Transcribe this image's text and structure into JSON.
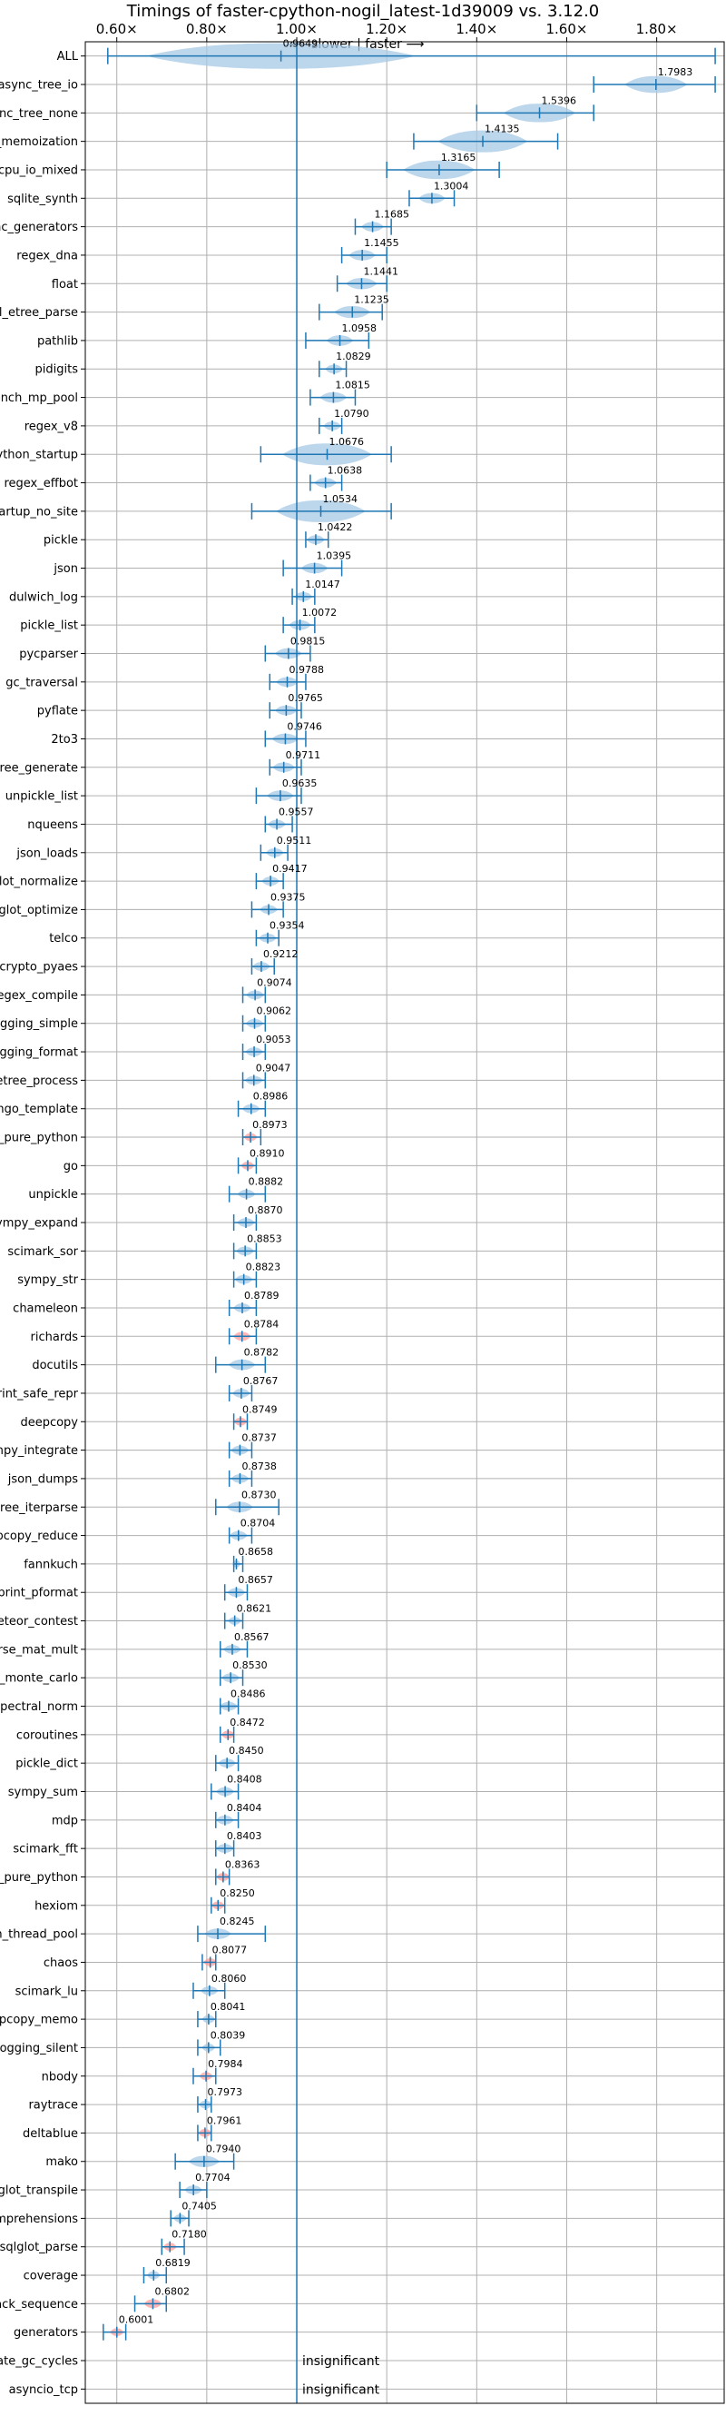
{
  "chart_data": {
    "type": "violin",
    "title": "Timings of faster-cpython-nogil_latest-1d39009 vs. 3.12.0",
    "direction_label": "⟵ slower | faster ⟶",
    "xlim": [
      0.53,
      1.95
    ],
    "x_ticks": [
      "0.60×",
      "0.80×",
      "1.00×",
      "1.20×",
      "1.40×",
      "1.60×",
      "1.80×"
    ],
    "x_tick_values": [
      0.6,
      0.8,
      1.0,
      1.2,
      1.4,
      1.6,
      1.8
    ],
    "reference_line": 1.0,
    "grid": true,
    "colors": {
      "faster": "#1f77b4",
      "slower": "#ff9896",
      "neutral": "#1f77b4"
    },
    "benchmarks": [
      {
        "name": "ALL",
        "value": 0.9649,
        "label": "0.9649",
        "min": 0.58,
        "max": 1.93,
        "spread": 0.3
      },
      {
        "name": "async_tree_io",
        "value": 1.7983,
        "label": "1.7983",
        "min": 1.66,
        "max": 1.93,
        "spread": 0.07
      },
      {
        "name": "async_tree_none",
        "value": 1.5396,
        "label": "1.5396",
        "min": 1.4,
        "max": 1.66,
        "spread": 0.08
      },
      {
        "name": "async_tree_memoization",
        "value": 1.4135,
        "label": "1.4135",
        "min": 1.26,
        "max": 1.58,
        "spread": 0.1
      },
      {
        "name": "async_tree_cpu_io_mixed",
        "value": 1.3165,
        "label": "1.3165",
        "min": 1.2,
        "max": 1.45,
        "spread": 0.08
      },
      {
        "name": "sqlite_synth",
        "value": 1.3004,
        "label": "1.3004",
        "min": 1.25,
        "max": 1.35,
        "spread": 0.03
      },
      {
        "name": "async_generators",
        "value": 1.1685,
        "label": "1.1685",
        "min": 1.13,
        "max": 1.21,
        "spread": 0.025
      },
      {
        "name": "regex_dna",
        "value": 1.1455,
        "label": "1.1455",
        "min": 1.1,
        "max": 1.2,
        "spread": 0.03
      },
      {
        "name": "float",
        "value": 1.1441,
        "label": "1.1441",
        "min": 1.09,
        "max": 1.2,
        "spread": 0.035
      },
      {
        "name": "xml_etree_parse",
        "value": 1.1235,
        "label": "1.1235",
        "min": 1.05,
        "max": 1.19,
        "spread": 0.04
      },
      {
        "name": "pathlib",
        "value": 1.0958,
        "label": "1.0958",
        "min": 1.02,
        "max": 1.16,
        "spread": 0.03
      },
      {
        "name": "pidigits",
        "value": 1.0829,
        "label": "1.0829",
        "min": 1.05,
        "max": 1.11,
        "spread": 0.02
      },
      {
        "name": "bench_mp_pool",
        "value": 1.0815,
        "label": "1.0815",
        "min": 1.03,
        "max": 1.13,
        "spread": 0.03
      },
      {
        "name": "regex_v8",
        "value": 1.079,
        "label": "1.0790",
        "min": 1.05,
        "max": 1.1,
        "spread": 0.02
      },
      {
        "name": "python_startup",
        "value": 1.0676,
        "label": "1.0676",
        "min": 0.92,
        "max": 1.21,
        "spread": 0.1
      },
      {
        "name": "regex_effbot",
        "value": 1.0638,
        "label": "1.0638",
        "min": 1.03,
        "max": 1.1,
        "spread": 0.025
      },
      {
        "name": "python_startup_no_site",
        "value": 1.0534,
        "label": "1.0534",
        "min": 0.9,
        "max": 1.21,
        "spread": 0.1
      },
      {
        "name": "pickle",
        "value": 1.0422,
        "label": "1.0422",
        "min": 1.02,
        "max": 1.07,
        "spread": 0.02
      },
      {
        "name": "json",
        "value": 1.0395,
        "label": "1.0395",
        "min": 0.97,
        "max": 1.1,
        "spread": 0.03
      },
      {
        "name": "dulwich_log",
        "value": 1.0147,
        "label": "1.0147",
        "min": 0.99,
        "max": 1.04,
        "spread": 0.02
      },
      {
        "name": "pickle_list",
        "value": 1.0072,
        "label": "1.0072",
        "min": 0.97,
        "max": 1.04,
        "spread": 0.025
      },
      {
        "name": "pycparser",
        "value": 0.9815,
        "label": "0.9815",
        "min": 0.93,
        "max": 1.03,
        "spread": 0.03
      },
      {
        "name": "gc_traversal",
        "value": 0.9788,
        "label": "0.9788",
        "min": 0.94,
        "max": 1.02,
        "spread": 0.025
      },
      {
        "name": "pyflate",
        "value": 0.9765,
        "label": "0.9765",
        "min": 0.94,
        "max": 1.01,
        "spread": 0.025
      },
      {
        "name": "2to3",
        "value": 0.9746,
        "label": "0.9746",
        "min": 0.93,
        "max": 1.02,
        "spread": 0.03
      },
      {
        "name": "xml_etree_generate",
        "value": 0.9711,
        "label": "0.9711",
        "min": 0.94,
        "max": 1.01,
        "spread": 0.025
      },
      {
        "name": "unpickle_list",
        "value": 0.9635,
        "label": "0.9635",
        "min": 0.91,
        "max": 1.01,
        "spread": 0.03
      },
      {
        "name": "nqueens",
        "value": 0.9557,
        "label": "0.9557",
        "min": 0.93,
        "max": 0.99,
        "spread": 0.02
      },
      {
        "name": "json_loads",
        "value": 0.9511,
        "label": "0.9511",
        "min": 0.92,
        "max": 0.98,
        "spread": 0.02
      },
      {
        "name": "sqlglot_normalize",
        "value": 0.9417,
        "label": "0.9417",
        "min": 0.91,
        "max": 0.97,
        "spread": 0.02
      },
      {
        "name": "sqlglot_optimize",
        "value": 0.9375,
        "label": "0.9375",
        "min": 0.9,
        "max": 0.97,
        "spread": 0.02
      },
      {
        "name": "telco",
        "value": 0.9354,
        "label": "0.9354",
        "min": 0.91,
        "max": 0.96,
        "spread": 0.02
      },
      {
        "name": "crypto_pyaes",
        "value": 0.9212,
        "label": "0.9212",
        "min": 0.9,
        "max": 0.95,
        "spread": 0.02
      },
      {
        "name": "regex_compile",
        "value": 0.9074,
        "label": "0.9074",
        "min": 0.88,
        "max": 0.93,
        "spread": 0.02
      },
      {
        "name": "logging_simple",
        "value": 0.9062,
        "label": "0.9062",
        "min": 0.88,
        "max": 0.93,
        "spread": 0.02
      },
      {
        "name": "logging_format",
        "value": 0.9053,
        "label": "0.9053",
        "min": 0.88,
        "max": 0.93,
        "spread": 0.02
      },
      {
        "name": "xml_etree_process",
        "value": 0.9047,
        "label": "0.9047",
        "min": 0.88,
        "max": 0.93,
        "spread": 0.02
      },
      {
        "name": "django_template",
        "value": 0.8986,
        "label": "0.8986",
        "min": 0.87,
        "max": 0.93,
        "spread": 0.02
      },
      {
        "name": "pickle_pure_python",
        "value": 0.8973,
        "label": "0.8973",
        "min": 0.88,
        "max": 0.92,
        "spread": 0.015
      },
      {
        "name": "go",
        "value": 0.891,
        "label": "0.8910",
        "min": 0.87,
        "max": 0.91,
        "spread": 0.015
      },
      {
        "name": "unpickle",
        "value": 0.8882,
        "label": "0.8882",
        "min": 0.85,
        "max": 0.93,
        "spread": 0.02
      },
      {
        "name": "sympy_expand",
        "value": 0.887,
        "label": "0.8870",
        "min": 0.86,
        "max": 0.91,
        "spread": 0.02
      },
      {
        "name": "scimark_sor",
        "value": 0.8853,
        "label": "0.8853",
        "min": 0.86,
        "max": 0.91,
        "spread": 0.02
      },
      {
        "name": "sympy_str",
        "value": 0.8823,
        "label": "0.8823",
        "min": 0.86,
        "max": 0.91,
        "spread": 0.02
      },
      {
        "name": "chameleon",
        "value": 0.8789,
        "label": "0.8789",
        "min": 0.85,
        "max": 0.91,
        "spread": 0.02
      },
      {
        "name": "richards",
        "value": 0.8784,
        "label": "0.8784",
        "min": 0.85,
        "max": 0.91,
        "spread": 0.02
      },
      {
        "name": "docutils",
        "value": 0.8782,
        "label": "0.8782",
        "min": 0.82,
        "max": 0.93,
        "spread": 0.03
      },
      {
        "name": "pprint_safe_repr",
        "value": 0.8767,
        "label": "0.8767",
        "min": 0.85,
        "max": 0.9,
        "spread": 0.02
      },
      {
        "name": "deepcopy",
        "value": 0.8749,
        "label": "0.8749",
        "min": 0.86,
        "max": 0.89,
        "spread": 0.015
      },
      {
        "name": "sympy_integrate",
        "value": 0.8737,
        "label": "0.8737",
        "min": 0.85,
        "max": 0.9,
        "spread": 0.02
      },
      {
        "name": "json_dumps",
        "value": 0.8738,
        "label": "0.8738",
        "min": 0.85,
        "max": 0.9,
        "spread": 0.02
      },
      {
        "name": "xml_etree_iterparse",
        "value": 0.873,
        "label": "0.8730",
        "min": 0.82,
        "max": 0.96,
        "spread": 0.03
      },
      {
        "name": "deepcopy_reduce",
        "value": 0.8704,
        "label": "0.8704",
        "min": 0.85,
        "max": 0.9,
        "spread": 0.02
      },
      {
        "name": "fannkuch",
        "value": 0.8658,
        "label": "0.8658",
        "min": 0.86,
        "max": 0.88,
        "spread": 0.01
      },
      {
        "name": "pprint_pformat",
        "value": 0.8657,
        "label": "0.8657",
        "min": 0.84,
        "max": 0.89,
        "spread": 0.02
      },
      {
        "name": "meteor_contest",
        "value": 0.8621,
        "label": "0.8621",
        "min": 0.84,
        "max": 0.88,
        "spread": 0.015
      },
      {
        "name": "scimark_sparse_mat_mult",
        "value": 0.8567,
        "label": "0.8567",
        "min": 0.83,
        "max": 0.89,
        "spread": 0.02
      },
      {
        "name": "scimark_monte_carlo",
        "value": 0.853,
        "label": "0.8530",
        "min": 0.83,
        "max": 0.88,
        "spread": 0.02
      },
      {
        "name": "spectral_norm",
        "value": 0.8486,
        "label": "0.8486",
        "min": 0.83,
        "max": 0.87,
        "spread": 0.02
      },
      {
        "name": "coroutines",
        "value": 0.8472,
        "label": "0.8472",
        "min": 0.83,
        "max": 0.86,
        "spread": 0.015
      },
      {
        "name": "pickle_dict",
        "value": 0.845,
        "label": "0.8450",
        "min": 0.82,
        "max": 0.87,
        "spread": 0.02
      },
      {
        "name": "sympy_sum",
        "value": 0.8408,
        "label": "0.8408",
        "min": 0.81,
        "max": 0.87,
        "spread": 0.02
      },
      {
        "name": "mdp",
        "value": 0.8404,
        "label": "0.8404",
        "min": 0.82,
        "max": 0.87,
        "spread": 0.02
      },
      {
        "name": "scimark_fft",
        "value": 0.8403,
        "label": "0.8403",
        "min": 0.82,
        "max": 0.86,
        "spread": 0.02
      },
      {
        "name": "unpickle_pure_python",
        "value": 0.8363,
        "label": "0.8363",
        "min": 0.82,
        "max": 0.85,
        "spread": 0.015
      },
      {
        "name": "hexiom",
        "value": 0.825,
        "label": "0.8250",
        "min": 0.81,
        "max": 0.84,
        "spread": 0.015
      },
      {
        "name": "bench_thread_pool",
        "value": 0.8245,
        "label": "0.8245",
        "min": 0.78,
        "max": 0.93,
        "spread": 0.03
      },
      {
        "name": "chaos",
        "value": 0.8077,
        "label": "0.8077",
        "min": 0.79,
        "max": 0.82,
        "spread": 0.015
      },
      {
        "name": "scimark_lu",
        "value": 0.806,
        "label": "0.8060",
        "min": 0.77,
        "max": 0.84,
        "spread": 0.02
      },
      {
        "name": "deepcopy_memo",
        "value": 0.8041,
        "label": "0.8041",
        "min": 0.78,
        "max": 0.82,
        "spread": 0.015
      },
      {
        "name": "logging_silent",
        "value": 0.8039,
        "label": "0.8039",
        "min": 0.78,
        "max": 0.83,
        "spread": 0.015
      },
      {
        "name": "nbody",
        "value": 0.7984,
        "label": "0.7984",
        "min": 0.77,
        "max": 0.82,
        "spread": 0.015
      },
      {
        "name": "raytrace",
        "value": 0.7973,
        "label": "0.7973",
        "min": 0.78,
        "max": 0.81,
        "spread": 0.015
      },
      {
        "name": "deltablue",
        "value": 0.7961,
        "label": "0.7961",
        "min": 0.78,
        "max": 0.81,
        "spread": 0.015
      },
      {
        "name": "mako",
        "value": 0.794,
        "label": "0.7940",
        "min": 0.73,
        "max": 0.86,
        "spread": 0.035
      },
      {
        "name": "sqlglot_transpile",
        "value": 0.7704,
        "label": "0.7704",
        "min": 0.74,
        "max": 0.8,
        "spread": 0.02
      },
      {
        "name": "comprehensions",
        "value": 0.7405,
        "label": "0.7405",
        "min": 0.72,
        "max": 0.76,
        "spread": 0.015
      },
      {
        "name": "sqlglot_parse",
        "value": 0.718,
        "label": "0.7180",
        "min": 0.7,
        "max": 0.75,
        "spread": 0.015
      },
      {
        "name": "coverage",
        "value": 0.6819,
        "label": "0.6819",
        "min": 0.66,
        "max": 0.71,
        "spread": 0.015
      },
      {
        "name": "unpack_sequence",
        "value": 0.6802,
        "label": "0.6802",
        "min": 0.64,
        "max": 0.71,
        "spread": 0.02
      },
      {
        "name": "generators",
        "value": 0.6001,
        "label": "0.6001",
        "min": 0.57,
        "max": 0.62,
        "spread": 0.015
      },
      {
        "name": "create_gc_cycles",
        "value": null,
        "label": "insignificant"
      },
      {
        "name": "asyncio_tcp",
        "value": null,
        "label": "insignificant"
      }
    ],
    "pink_benchmarks": [
      "pickle_pure_python",
      "go",
      "richards",
      "deepcopy",
      "coroutines",
      "unpickle_pure_python",
      "hexiom",
      "chaos",
      "nbody",
      "deltablue",
      "sqlglot_parse",
      "unpack_sequence",
      "generators"
    ]
  }
}
